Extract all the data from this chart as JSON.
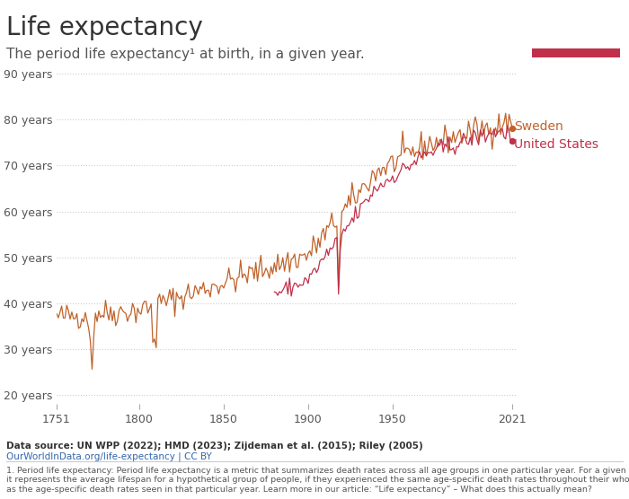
{
  "title": "Life expectancy",
  "subtitle": "The period life expectancy¹ at birth, in a given year.",
  "ylabel_ticks": [
    "20 years",
    "30 years",
    "40 years",
    "50 years",
    "60 years",
    "70 years",
    "80 years",
    "90 years"
  ],
  "ytick_vals": [
    20,
    30,
    40,
    50,
    60,
    70,
    80,
    90
  ],
  "xtick_vals": [
    1751,
    1800,
    1850,
    1900,
    1950,
    2021
  ],
  "xlim": [
    1751,
    2023
  ],
  "ylim": [
    18,
    93
  ],
  "sweden_color": "#c0622a",
  "usa_color": "#c0304a",
  "background_color": "#ffffff",
  "grid_color": "#cccccc",
  "title_fontsize": 20,
  "subtitle_fontsize": 11,
  "label_fontsize": 10,
  "data_source": "Data source: UN WPP (2022); HMD (2023); Zijdeman et al. (2015); Riley (2005)",
  "data_url": "OurWorldInData.org/life-expectancy | CC BY",
  "footnote": "1. Period life expectancy: Period life expectancy is a metric that summarizes death rates across all age groups in one particular year. For a given year,\nit represents the average lifespan for a hypothetical group of people, if they experienced the same age-specific death rates throughout their whole lives\nas the age-specific death rates seen in that particular year. Learn more in our article: “Life expectancy” – What does this actually mean?",
  "owid_box_color": "#1a3a5c",
  "owid_box_red": "#c0304a"
}
